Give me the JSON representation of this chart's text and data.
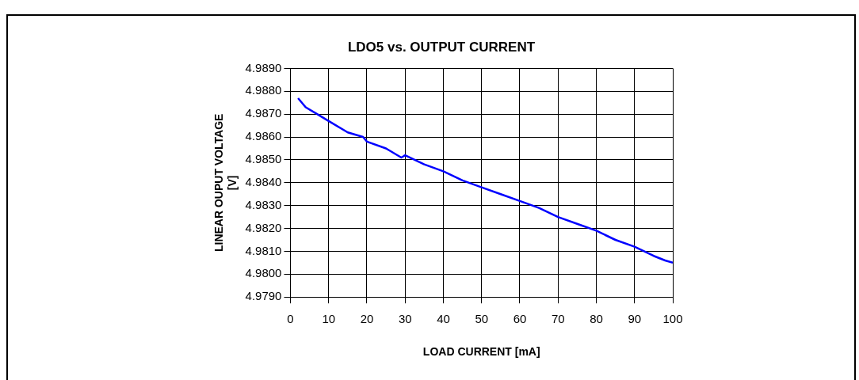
{
  "chart_data": {
    "type": "line",
    "title": "LDO5 vs. OUTPUT CURRENT",
    "xlabel": "LOAD CURRENT [mA]",
    "ylabel": "LINEAR OUPUT VOLTAGE\n[V]",
    "x": [
      2,
      4,
      7,
      10,
      15,
      19,
      20,
      25,
      29,
      30,
      35,
      40,
      45,
      50,
      55,
      60,
      65,
      70,
      75,
      80,
      85,
      90,
      95,
      98,
      100
    ],
    "series": [
      {
        "color": "#0000ff",
        "values": [
          4.9877,
          4.9873,
          4.987,
          4.9867,
          4.9862,
          4.986,
          4.9858,
          4.9855,
          4.9851,
          4.9852,
          4.9848,
          4.9845,
          4.9841,
          4.9838,
          4.9835,
          4.9832,
          4.9829,
          4.9825,
          4.9822,
          4.9819,
          4.9815,
          4.9812,
          4.9808,
          4.9806,
          4.9805
        ]
      }
    ],
    "xlim": [
      0,
      100
    ],
    "xticks": [
      0,
      10,
      20,
      30,
      40,
      50,
      60,
      70,
      80,
      90,
      100
    ],
    "ylim": [
      4.979,
      4.989
    ],
    "yticks": [
      {
        "value": 4.979,
        "label": "4.9790"
      },
      {
        "value": 4.98,
        "label": "4.9800"
      },
      {
        "value": 4.981,
        "label": "4.9810"
      },
      {
        "value": 4.982,
        "label": "4.9820"
      },
      {
        "value": 4.983,
        "label": "4.9830"
      },
      {
        "value": 4.984,
        "label": "4.9840"
      },
      {
        "value": 4.985,
        "label": "4.9850"
      },
      {
        "value": 4.986,
        "label": "4.9860"
      },
      {
        "value": 4.987,
        "label": "4.9870"
      },
      {
        "value": 4.988,
        "label": "4.9880"
      },
      {
        "value": 4.989,
        "label": "4.9890"
      }
    ],
    "grid": true,
    "legend": false,
    "marker": "none",
    "line_style": "solid"
  }
}
